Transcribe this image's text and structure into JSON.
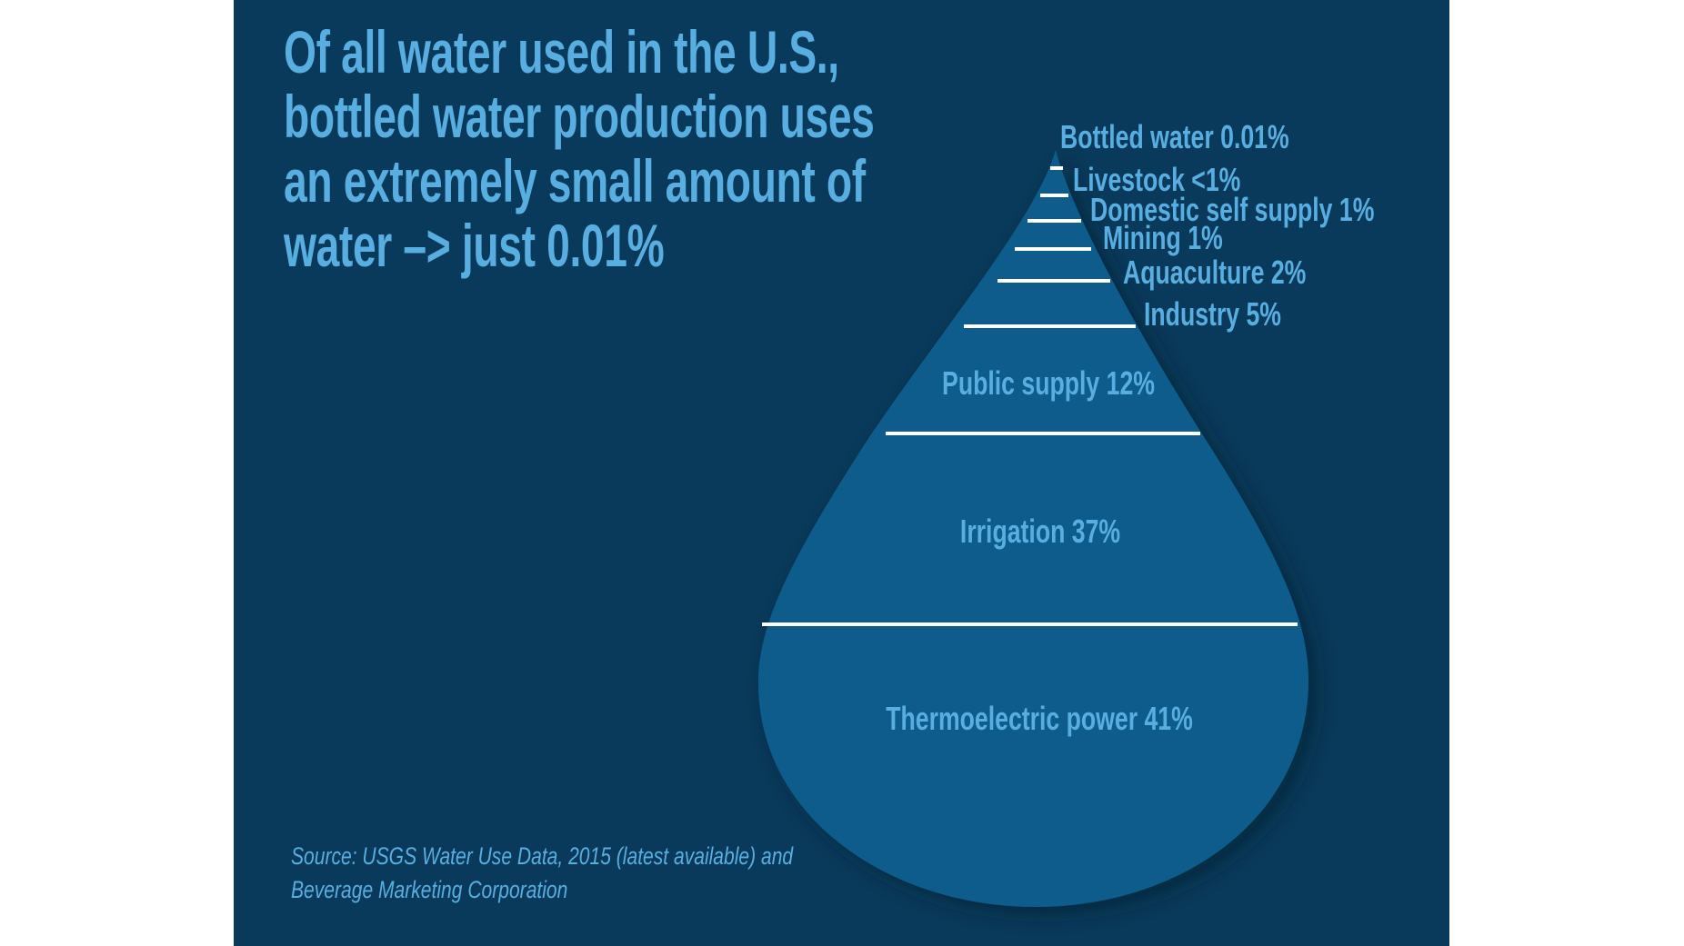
{
  "title_lines": [
    "Of all water used in the U.S.,",
    "bottled water production uses",
    "an extremely small amount of",
    "water –> just 0.01%"
  ],
  "source_lines": [
    "Source: USGS Water Use Data, 2015 (latest available) and",
    "Beverage Marketing Corporation"
  ],
  "colors": {
    "background": "#093a5b",
    "drop": "#0e5b8c",
    "text": "#58aee0",
    "divider": "#ffffff"
  },
  "chart_data": {
    "type": "funnel",
    "shape": "water drop",
    "categories": [
      "Bottled water",
      "Livestock",
      "Domestic self supply",
      "Mining",
      "Aquaculture",
      "Industry",
      "Public supply",
      "Irrigation",
      "Thermoelectric power"
    ],
    "values": [
      "0.01%",
      "<1%",
      "1%",
      "1%",
      "2%",
      "5%",
      "12%",
      "37%",
      "41%"
    ],
    "labels": [
      "Bottled water 0.01%",
      "Livestock <1%",
      "Domestic self supply 1%",
      "Mining 1%",
      "Aquaculture 2%",
      "Industry 5%",
      "Public supply 12%",
      "Irrigation 37%",
      "Thermoelectric power 41%"
    ]
  }
}
